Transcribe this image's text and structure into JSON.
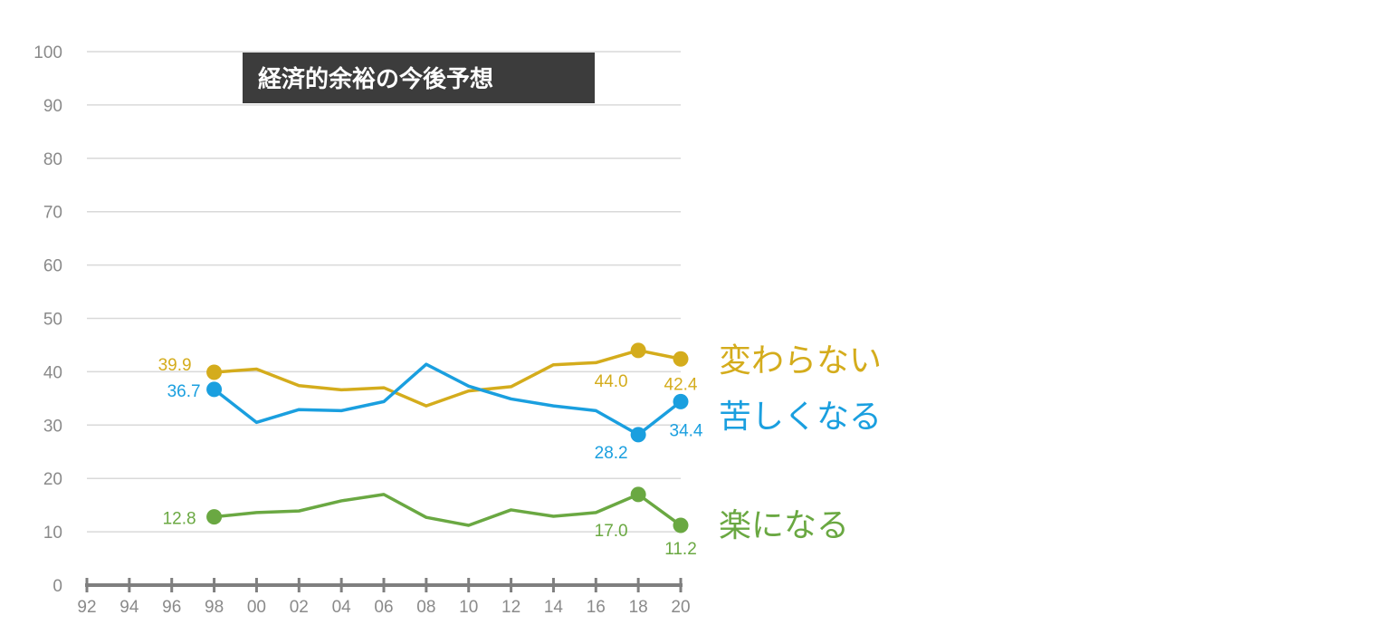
{
  "chart_data": {
    "type": "line",
    "title": "経済的余裕の今後予想",
    "ylim": [
      0,
      100
    ],
    "yticks": [
      "0",
      "10",
      "20",
      "30",
      "40",
      "50",
      "60",
      "70",
      "80",
      "90",
      "100"
    ],
    "xticks": [
      "92",
      "94",
      "96",
      "98",
      "00",
      "02",
      "04",
      "06",
      "08",
      "10",
      "12",
      "14",
      "16",
      "18",
      "20"
    ],
    "x": [
      "98",
      "00",
      "02",
      "04",
      "06",
      "08",
      "10",
      "12",
      "14",
      "16",
      "18",
      "20"
    ],
    "grid": true,
    "series": [
      {
        "name": "変わらない",
        "color": "#d4ac1c",
        "values": [
          39.9,
          40.5,
          37.4,
          36.6,
          37.0,
          33.6,
          36.4,
          37.2,
          41.3,
          41.7,
          44.0,
          42.4
        ],
        "labels": [
          {
            "index": 0,
            "text": "39.9"
          },
          {
            "index": 10,
            "text": "44.0"
          },
          {
            "index": 11,
            "text": "42.4"
          }
        ]
      },
      {
        "name": "苦しくなる",
        "color": "#1a9fdf",
        "values": [
          36.7,
          30.5,
          32.9,
          32.7,
          34.4,
          41.4,
          37.3,
          34.9,
          33.6,
          32.7,
          28.2,
          34.4
        ],
        "labels": [
          {
            "index": 0,
            "text": "36.7"
          },
          {
            "index": 10,
            "text": "28.2"
          },
          {
            "index": 11,
            "text": "34.4"
          }
        ]
      },
      {
        "name": "楽になる",
        "color": "#6aa842",
        "values": [
          12.8,
          13.6,
          13.9,
          15.8,
          17.0,
          12.7,
          11.2,
          14.1,
          12.9,
          13.6,
          17.0,
          11.2
        ],
        "labels": [
          {
            "index": 0,
            "text": "12.8"
          },
          {
            "index": 10,
            "text": "17.0"
          },
          {
            "index": 11,
            "text": "11.2"
          }
        ]
      }
    ]
  }
}
